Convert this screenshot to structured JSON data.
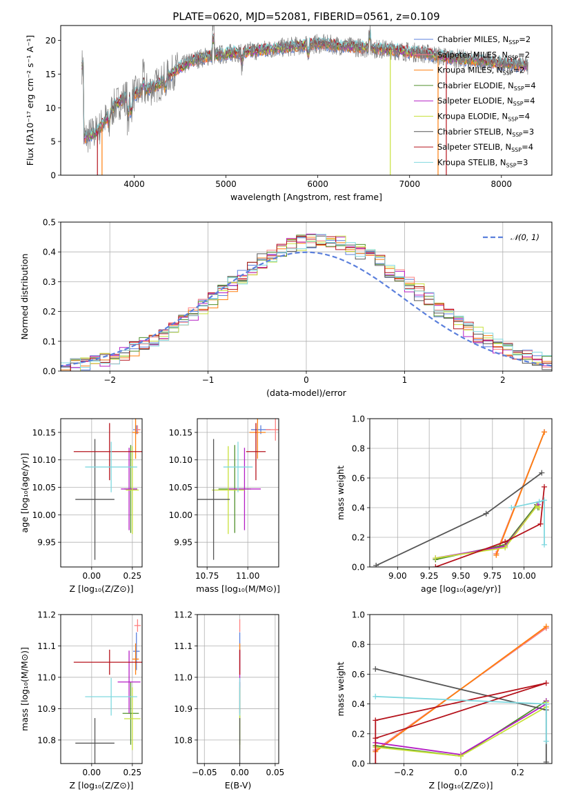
{
  "figure": {
    "title": "PLATE=0620, MJD=52081, FIBERID=0561, z=0.109"
  },
  "models": [
    {
      "key": "chm",
      "label": "Chabrier MILES, N",
      "sub": "SSP",
      "tail": "=2",
      "color": "#5a7fdc"
    },
    {
      "key": "sam",
      "label": "Salpeter MILES, N",
      "sub": "SSP",
      "tail": "=2",
      "color": "#ff7f7f"
    },
    {
      "key": "krm",
      "label": "Kroupa MILES, N",
      "sub": "SSP",
      "tail": "=2",
      "color": "#ff7f0e"
    },
    {
      "key": "che",
      "label": "Chabrier ELODIE, N",
      "sub": "SSP",
      "tail": "=4",
      "color": "#4f8f2a"
    },
    {
      "key": "sae",
      "label": "Salpeter ELODIE, N",
      "sub": "SSP",
      "tail": "=4",
      "color": "#b41cc4"
    },
    {
      "key": "kre",
      "label": "Kroupa ELODIE, N",
      "sub": "SSP",
      "tail": "=4",
      "color": "#c7e03a"
    },
    {
      "key": "chs",
      "label": "Chabrier STELIB, N",
      "sub": "SSP",
      "tail": "=3",
      "color": "#555555"
    },
    {
      "key": "sas",
      "label": "Salpeter STELIB, N",
      "sub": "SSP",
      "tail": "=4",
      "color": "#b5121b"
    },
    {
      "key": "krs",
      "label": "Kroupa STELIB, N",
      "sub": "SSP",
      "tail": "=3",
      "color": "#7fd8df"
    }
  ],
  "chart_data": [
    {
      "id": "spectrum",
      "type": "line",
      "xlabel": "wavelength [Angstrom, rest frame]",
      "ylabel": "Flux [fλ10⁻¹⁷ erg cm⁻² s⁻¹ A⁻¹]",
      "xlim": [
        3200,
        8550
      ],
      "ylim": [
        0,
        22.2
      ],
      "xticks": [
        "4000",
        "5000",
        "6000",
        "7000",
        "8000"
      ],
      "yticks": [
        "0",
        "5",
        "10",
        "15",
        "20"
      ],
      "continuum": [
        [
          3450,
          5.5
        ],
        [
          3600,
          6.5
        ],
        [
          3700,
          8.5
        ],
        [
          3800,
          10.5
        ],
        [
          3900,
          11.5
        ],
        [
          4000,
          12.0
        ],
        [
          4100,
          12.5
        ],
        [
          4200,
          13.0
        ],
        [
          4300,
          13.8
        ],
        [
          4400,
          15.0
        ],
        [
          4500,
          16.0
        ],
        [
          4600,
          16.8
        ],
        [
          4700,
          17.3
        ],
        [
          4800,
          17.6
        ],
        [
          4900,
          17.8
        ],
        [
          5000,
          18.0
        ],
        [
          5200,
          18.3
        ],
        [
          5400,
          18.6
        ],
        [
          5600,
          18.9
        ],
        [
          5800,
          19.2
        ],
        [
          6000,
          19.5
        ],
        [
          6200,
          19.3
        ],
        [
          6400,
          19.0
        ],
        [
          6600,
          18.8
        ],
        [
          6800,
          18.6
        ],
        [
          7000,
          18.3
        ],
        [
          7200,
          18.0
        ],
        [
          7400,
          17.5
        ],
        [
          7600,
          17.2
        ],
        [
          7800,
          16.9
        ],
        [
          8000,
          16.6
        ],
        [
          8290,
          16.2
        ]
      ],
      "legend": "upper right"
    },
    {
      "id": "residuals",
      "type": "line",
      "xlabel": "(data-model)/error",
      "ylabel": "Normed distribution",
      "xlim": [
        -2.5,
        2.5
      ],
      "ylim": [
        0,
        0.5
      ],
      "xticks": [
        "−2",
        "−1",
        "0",
        "1",
        "2"
      ],
      "yticks": [
        "0.0",
        "0.1",
        "0.2",
        "0.3",
        "0.4",
        "0.5"
      ],
      "bin_width": 0.1,
      "reference": {
        "name": "𝒩(0, 1)",
        "mean": 0,
        "sigma": 1,
        "color": "#5a7fdc"
      },
      "grid": true,
      "legend": "upper right"
    },
    {
      "id": "age-vs-Z",
      "type": "scatter",
      "xlabel": "Z [log₁₀(Z/Z⊙)]",
      "ylabel": "age  [log₁₀(age/yr)]",
      "xlim": [
        -0.19,
        0.31
      ],
      "ylim": [
        9.905,
        10.175
      ],
      "xticks": [
        "0.00",
        "0.25"
      ],
      "yticks": [
        "9.95",
        "10.00",
        "10.05",
        "10.10",
        "10.15"
      ],
      "grid": true,
      "points": [
        {
          "m": "chm",
          "x": 0.275,
          "y": 10.155,
          "xerr": 0.02,
          "yerr": 0.008
        },
        {
          "m": "sam",
          "x": 0.282,
          "y": 10.155,
          "xerr": 0.018,
          "yerr": 0.008
        },
        {
          "m": "krm",
          "x": 0.27,
          "y": 10.15,
          "xerr": 0.02,
          "yerr": 0.048
        },
        {
          "m": "che",
          "x": 0.24,
          "y": 10.047,
          "xerr": 0.04,
          "yerr": 0.08
        },
        {
          "m": "sae",
          "x": 0.23,
          "y": 10.047,
          "xerr": 0.05,
          "yerr": 0.075
        },
        {
          "m": "kre",
          "x": 0.25,
          "y": 10.045,
          "xerr": 0.04,
          "yerr": 0.08
        },
        {
          "m": "chs",
          "x": 0.02,
          "y": 10.028,
          "xerr": 0.12,
          "yerr": 0.11
        },
        {
          "m": "sas",
          "x": 0.11,
          "y": 10.115,
          "xerr": 0.22,
          "yerr": 0.052
        },
        {
          "m": "krs",
          "x": 0.12,
          "y": 10.087,
          "xerr": 0.16,
          "yerr": 0.046
        }
      ]
    },
    {
      "id": "age-vs-mass",
      "type": "scatter",
      "xlabel": "mass [log₁₀(M/M⊙)]",
      "ylabel": "",
      "xlim": [
        10.69,
        11.19
      ],
      "ylim": [
        9.905,
        10.175
      ],
      "xticks": [
        "10.75",
        "11.00"
      ],
      "yticks": [
        "9.95",
        "10.00",
        "10.05",
        "10.10",
        "10.15"
      ],
      "grid": true,
      "points": [
        {
          "m": "chm",
          "x": 11.08,
          "y": 10.155,
          "xerr": 0.06,
          "yerr": 0.008
        },
        {
          "m": "sam",
          "x": 11.17,
          "y": 10.155,
          "xerr": 0.06,
          "yerr": 0.02
        },
        {
          "m": "krm",
          "x": 11.06,
          "y": 10.15,
          "xerr": 0.05,
          "yerr": 0.048
        },
        {
          "m": "che",
          "x": 10.92,
          "y": 10.047,
          "xerr": 0.1,
          "yerr": 0.08
        },
        {
          "m": "sae",
          "x": 10.98,
          "y": 10.047,
          "xerr": 0.1,
          "yerr": 0.075
        },
        {
          "m": "kre",
          "x": 10.88,
          "y": 10.045,
          "xerr": 0.1,
          "yerr": 0.08
        },
        {
          "m": "chs",
          "x": 10.79,
          "y": 10.028,
          "xerr": 0.1,
          "yerr": 0.11
        },
        {
          "m": "sas",
          "x": 11.05,
          "y": 10.115,
          "xerr": 0.06,
          "yerr": 0.052
        },
        {
          "m": "krs",
          "x": 10.94,
          "y": 10.087,
          "xerr": 0.09,
          "yerr": 0.046
        }
      ]
    },
    {
      "id": "weight-vs-age",
      "type": "line",
      "xlabel": "age  [log₁₀(age/yr)]",
      "ylabel": "mass weight",
      "xlim": [
        8.78,
        10.22
      ],
      "ylim": [
        0,
        1.0
      ],
      "xticks": [
        "9.00",
        "9.25",
        "9.50",
        "9.75",
        "10.00"
      ],
      "yticks": [
        "0.0",
        "0.2",
        "0.4",
        "0.6",
        "0.8",
        "1.0"
      ],
      "grid": true,
      "series": [
        {
          "m": "chm",
          "x": [
            9.78,
            10.16
          ],
          "y": [
            0.09,
            0.91
          ]
        },
        {
          "m": "sam",
          "x": [
            9.78,
            10.16
          ],
          "y": [
            0.09,
            0.91
          ]
        },
        {
          "m": "krm",
          "x": [
            9.78,
            10.16
          ],
          "y": [
            0.08,
            0.91
          ]
        },
        {
          "m": "che",
          "x": [
            9.3,
            9.85,
            10.1,
            10.11
          ],
          "y": [
            0.05,
            0.15,
            0.42,
            0.4
          ]
        },
        {
          "m": "sae",
          "x": [
            9.3,
            9.85,
            10.11,
            10.12
          ],
          "y": [
            0.06,
            0.14,
            0.42,
            0.4
          ]
        },
        {
          "m": "kre",
          "x": [
            9.3,
            9.85,
            10.1,
            10.12
          ],
          "y": [
            0.06,
            0.13,
            0.41,
            0.4
          ]
        },
        {
          "m": "chs",
          "x": [
            8.83,
            9.7,
            10.14
          ],
          "y": [
            0.01,
            0.36,
            0.635
          ]
        },
        {
          "m": "sas",
          "x": [
            9.3,
            9.85,
            10.13,
            10.16
          ],
          "y": [
            0.0,
            0.17,
            0.29,
            0.54
          ]
        },
        {
          "m": "krs",
          "x": [
            9.9,
            10.12,
            10.16,
            10.16
          ],
          "y": [
            0.4,
            0.44,
            0.45,
            0.15
          ]
        }
      ]
    },
    {
      "id": "mass-vs-Z",
      "type": "scatter",
      "xlabel": "Z [log₁₀(Z/Z⊙)]",
      "ylabel": "mass [log₁₀(M/M⊙)]",
      "xlim": [
        -0.19,
        0.31
      ],
      "ylim": [
        10.725,
        11.2
      ],
      "xticks": [
        "0.00",
        "0.25"
      ],
      "yticks": [
        "10.8",
        "10.9",
        "11.0",
        "11.1",
        "11.2"
      ],
      "grid": true,
      "points": [
        {
          "m": "chm",
          "x": 0.275,
          "y": 11.083,
          "xerr": 0.02,
          "yerr": 0.06
        },
        {
          "m": "sam",
          "x": 0.282,
          "y": 11.165,
          "xerr": 0.02,
          "yerr": 0.02
        },
        {
          "m": "krm",
          "x": 0.27,
          "y": 11.058,
          "xerr": 0.02,
          "yerr": 0.05
        },
        {
          "m": "che",
          "x": 0.24,
          "y": 10.885,
          "xerr": 0.05,
          "yerr": 0.1
        },
        {
          "m": "sae",
          "x": 0.23,
          "y": 10.985,
          "xerr": 0.07,
          "yerr": 0.1
        },
        {
          "m": "kre",
          "x": 0.25,
          "y": 10.868,
          "xerr": 0.05,
          "yerr": 0.1
        },
        {
          "m": "chs",
          "x": 0.02,
          "y": 10.79,
          "xerr": 0.12,
          "yerr": 0.08
        },
        {
          "m": "sas",
          "x": 0.11,
          "y": 11.048,
          "xerr": 0.22,
          "yerr": 0.04
        },
        {
          "m": "krs",
          "x": 0.12,
          "y": 10.938,
          "xerr": 0.16,
          "yerr": 0.06
        }
      ]
    },
    {
      "id": "mass-vs-EBV",
      "type": "scatter",
      "xlabel": "E(B-V)",
      "ylabel": "",
      "xlim": [
        -0.06,
        0.055
      ],
      "ylim": [
        10.725,
        11.2
      ],
      "xticks": [
        "−0.05",
        "0.00",
        "0.05"
      ],
      "yticks": [
        "10.8",
        "10.9",
        "11.0",
        "11.1",
        "11.2"
      ],
      "grid": true,
      "points": [
        {
          "m": "chm",
          "x": 0.0,
          "y": 11.083,
          "xerr": 0.0,
          "yerr": 0.06
        },
        {
          "m": "sam",
          "x": 0.0,
          "y": 11.165,
          "xerr": 0.0,
          "yerr": 0.02
        },
        {
          "m": "krm",
          "x": 0.0,
          "y": 11.058,
          "xerr": 0.0,
          "yerr": 0.05
        },
        {
          "m": "che",
          "x": 0.0,
          "y": 10.885,
          "xerr": 0.0,
          "yerr": 0.1
        },
        {
          "m": "sae",
          "x": 0.0,
          "y": 10.985,
          "xerr": 0.0,
          "yerr": 0.1
        },
        {
          "m": "kre",
          "x": 0.0,
          "y": 10.868,
          "xerr": 0.0,
          "yerr": 0.1
        },
        {
          "m": "chs",
          "x": 0.0,
          "y": 10.79,
          "xerr": 0.0,
          "yerr": 0.08
        },
        {
          "m": "sas",
          "x": 0.0,
          "y": 11.048,
          "xerr": 0.0,
          "yerr": 0.04
        },
        {
          "m": "krs",
          "x": 0.0,
          "y": 10.938,
          "xerr": 0.0,
          "yerr": 0.06
        }
      ]
    },
    {
      "id": "weight-vs-Z",
      "type": "line",
      "xlabel": "Z [log₁₀(Z/Z⊙)]",
      "ylabel": "mass weight",
      "xlim": [
        -0.32,
        0.32
      ],
      "ylim": [
        0,
        1.0
      ],
      "xticks": [
        "−0.2",
        "0.0",
        "0.2"
      ],
      "yticks": [
        "0.0",
        "0.2",
        "0.4",
        "0.6",
        "0.8",
        "1.0"
      ],
      "grid": true,
      "series": [
        {
          "m": "chm",
          "x": [
            -0.3,
            0.3
          ],
          "y": [
            0.09,
            0.91
          ]
        },
        {
          "m": "sam",
          "x": [
            -0.3,
            0.3
          ],
          "y": [
            0.09,
            0.91
          ]
        },
        {
          "m": "krm",
          "x": [
            -0.3,
            0.3
          ],
          "y": [
            0.08,
            0.92
          ]
        },
        {
          "m": "che",
          "x": [
            -0.3,
            0.0,
            0.3,
            0.3
          ],
          "y": [
            0.12,
            0.05,
            0.42,
            0.4
          ]
        },
        {
          "m": "sae",
          "x": [
            -0.3,
            0.0,
            0.3,
            0.3
          ],
          "y": [
            0.14,
            0.06,
            0.4,
            0.42
          ]
        },
        {
          "m": "kre",
          "x": [
            -0.3,
            0.0,
            0.3,
            0.3
          ],
          "y": [
            0.11,
            0.05,
            0.38,
            0.41
          ]
        },
        {
          "m": "chs",
          "x": [
            -0.3,
            0.3,
            0.3
          ],
          "y": [
            0.635,
            0.36,
            0.01
          ]
        },
        {
          "m": "sas",
          "x": [
            -0.3,
            -0.3,
            0.3,
            -0.3
          ],
          "y": [
            0.0,
            0.29,
            0.54,
            0.17
          ]
        },
        {
          "m": "krs",
          "x": [
            -0.3,
            0.3,
            0.3
          ],
          "y": [
            0.45,
            0.4,
            0.15
          ]
        }
      ]
    }
  ]
}
